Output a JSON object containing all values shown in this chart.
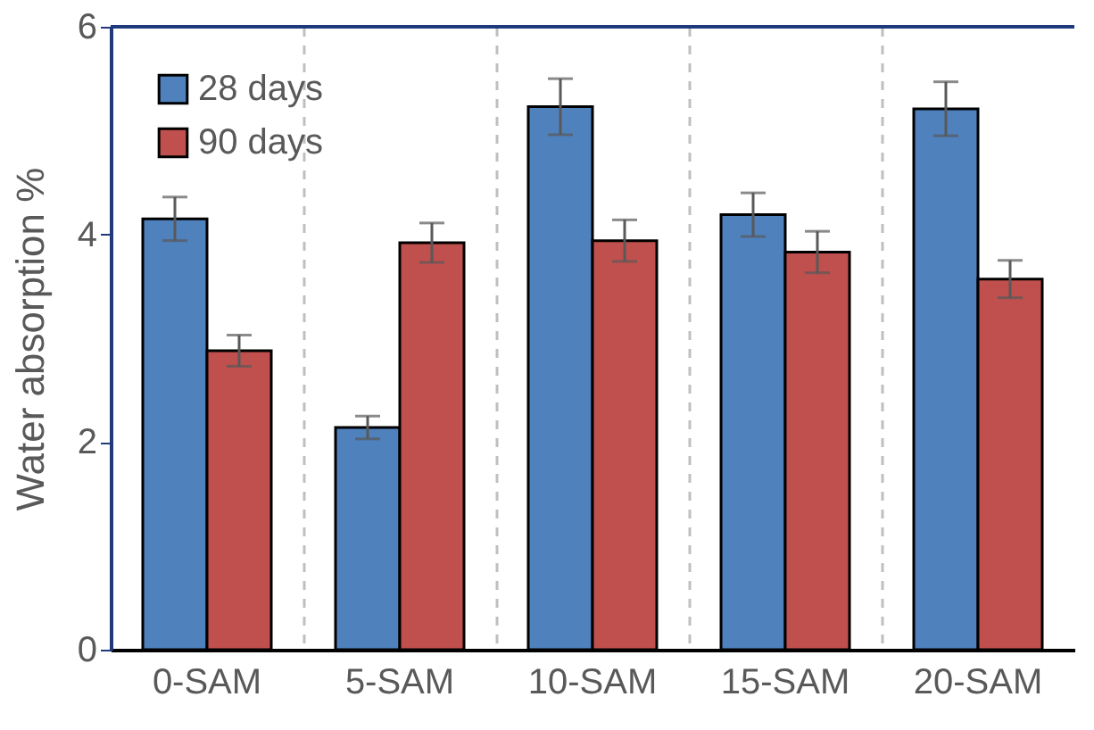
{
  "chart_data": {
    "type": "bar",
    "ylabel": "Water absorption %",
    "categories": [
      "0-SAM",
      "5-SAM",
      "10-SAM",
      "15-SAM",
      "20-SAM"
    ],
    "series": [
      {
        "name": "28 days",
        "color": "#4f81bd",
        "values": [
          4.15,
          2.14,
          5.23,
          4.19,
          5.21
        ],
        "errors": [
          0.21,
          0.11,
          0.27,
          0.21,
          0.26
        ]
      },
      {
        "name": "90 days",
        "color": "#c0504d",
        "values": [
          2.88,
          3.92,
          3.94,
          3.83,
          3.57
        ],
        "errors": [
          0.15,
          0.19,
          0.2,
          0.2,
          0.18
        ]
      }
    ],
    "ylim": [
      0,
      6
    ],
    "yticks": [
      0,
      2,
      4,
      6
    ],
    "grid": "x",
    "legend": "top left"
  }
}
